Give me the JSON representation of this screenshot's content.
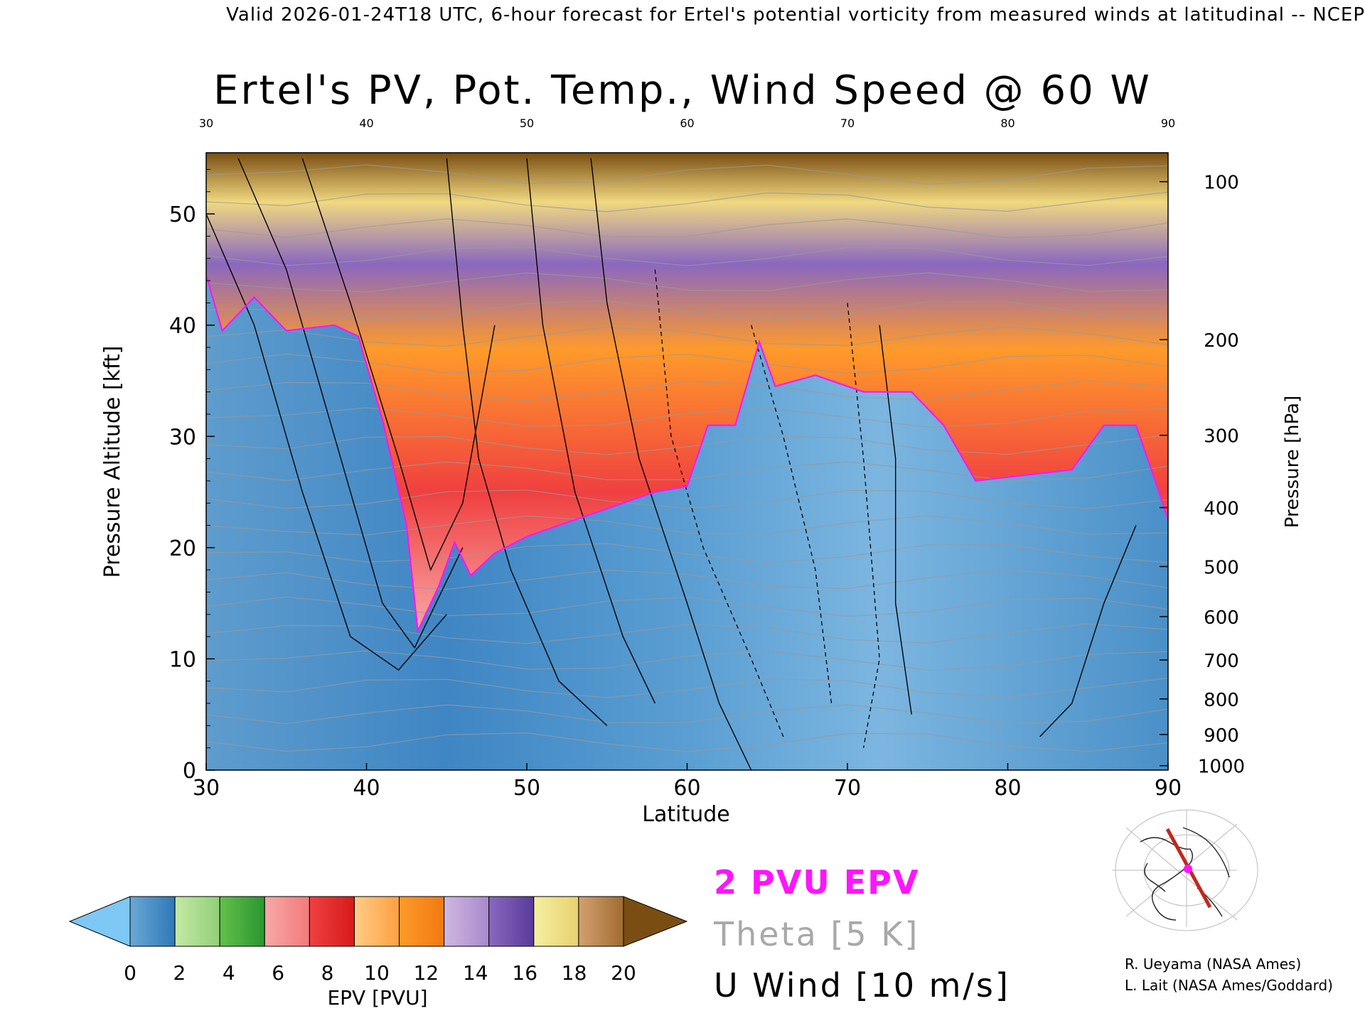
{
  "header": {
    "valid_line": "Valid 2026-01-24T18 UTC, 6-hour forecast for Ertel's potential vorticity from measured winds at latitudinal -- NCEP"
  },
  "credits": [
    "R. Ueyama (NASA Ames)",
    "L. Lait (NASA Ames/Goddard)"
  ],
  "legend": {
    "epv_contour": "2 PVU EPV",
    "theta_contour": "Theta [5 K]",
    "wind_contour": "U Wind [10 m/s]",
    "epv_color": "#ff14ff",
    "theta_color": "#a8a8a8",
    "wind_color": "#000000"
  },
  "colorbar": {
    "label": "EPV [PVU]",
    "ticks": [
      "0",
      "2",
      "4",
      "6",
      "8",
      "10",
      "12",
      "14",
      "16",
      "18",
      "20"
    ],
    "under_color": "#7ec8f5",
    "over_color": "#7a4e12",
    "segments": [
      [
        "#6aa8d6",
        "#2f78b8"
      ],
      [
        "#c6e8a4",
        "#8fd078"
      ],
      [
        "#64c04a",
        "#2a9630"
      ],
      [
        "#f8a8a8",
        "#f27a7a"
      ],
      [
        "#f04040",
        "#d81a1a"
      ],
      [
        "#ffcc88",
        "#ffa040"
      ],
      [
        "#ff9a2a",
        "#f07a10"
      ],
      [
        "#d0b8e0",
        "#a888cc"
      ],
      [
        "#8a68c0",
        "#5a3a9a"
      ],
      [
        "#f4f0a0",
        "#e8d070"
      ],
      [
        "#d4a070",
        "#a06c30"
      ]
    ]
  },
  "chart_data": {
    "type": "heatmap",
    "title": "Ertel's PV, Pot. Temp., Wind Speed @ 60 W",
    "xlabel": "Latitude",
    "ylabel": "Pressure Altitude [kft]",
    "y2label": "Pressure [hPa]",
    "xlim": [
      30,
      90
    ],
    "ylim": [
      0,
      55.5
    ],
    "x_ticks": [
      "30",
      "40",
      "50",
      "60",
      "70",
      "80",
      "90"
    ],
    "y_ticks": [
      "0",
      "10",
      "20",
      "30",
      "40",
      "50"
    ],
    "pressure_ticks": [
      {
        "label": "100",
        "kft": 52.9
      },
      {
        "label": "200",
        "kft": 38.7
      },
      {
        "label": "300",
        "kft": 30.1
      },
      {
        "label": "400",
        "kft": 23.6
      },
      {
        "label": "500",
        "kft": 18.3
      },
      {
        "label": "600",
        "kft": 13.8
      },
      {
        "label": "700",
        "kft": 9.9
      },
      {
        "label": "800",
        "kft": 6.4
      },
      {
        "label": "900",
        "kft": 3.2
      },
      {
        "label": "1000",
        "kft": 0.4
      }
    ],
    "pv2_tropopause_kft": [
      {
        "lat": 30,
        "kft": 44.5
      },
      {
        "lat": 31,
        "kft": 39.5
      },
      {
        "lat": 33,
        "kft": 42.5
      },
      {
        "lat": 35,
        "kft": 39.5
      },
      {
        "lat": 38,
        "kft": 40.0
      },
      {
        "lat": 39.5,
        "kft": 39.0
      },
      {
        "lat": 41,
        "kft": 31.5
      },
      {
        "lat": 42.5,
        "kft": 22.0
      },
      {
        "lat": 43.2,
        "kft": 12.5
      },
      {
        "lat": 44.5,
        "kft": 16.5
      },
      {
        "lat": 45.5,
        "kft": 20.5
      },
      {
        "lat": 46.5,
        "kft": 17.5
      },
      {
        "lat": 48,
        "kft": 19.5
      },
      {
        "lat": 50,
        "kft": 21.0
      },
      {
        "lat": 52,
        "kft": 22.0
      },
      {
        "lat": 54,
        "kft": 23.0
      },
      {
        "lat": 56,
        "kft": 24.0
      },
      {
        "lat": 58,
        "kft": 25.0
      },
      {
        "lat": 60,
        "kft": 25.5
      },
      {
        "lat": 61.3,
        "kft": 31.0
      },
      {
        "lat": 63,
        "kft": 31.0
      },
      {
        "lat": 64.5,
        "kft": 38.5
      },
      {
        "lat": 65.5,
        "kft": 34.5
      },
      {
        "lat": 68,
        "kft": 35.5
      },
      {
        "lat": 71,
        "kft": 34.0
      },
      {
        "lat": 74,
        "kft": 34.0
      },
      {
        "lat": 76,
        "kft": 31.0
      },
      {
        "lat": 78,
        "kft": 26.0
      },
      {
        "lat": 81,
        "kft": 26.5
      },
      {
        "lat": 84,
        "kft": 27.0
      },
      {
        "lat": 86,
        "kft": 31.0
      },
      {
        "lat": 88,
        "kft": 31.0
      },
      {
        "lat": 89.2,
        "kft": 26.0
      },
      {
        "lat": 90,
        "kft": 22.5
      }
    ]
  }
}
